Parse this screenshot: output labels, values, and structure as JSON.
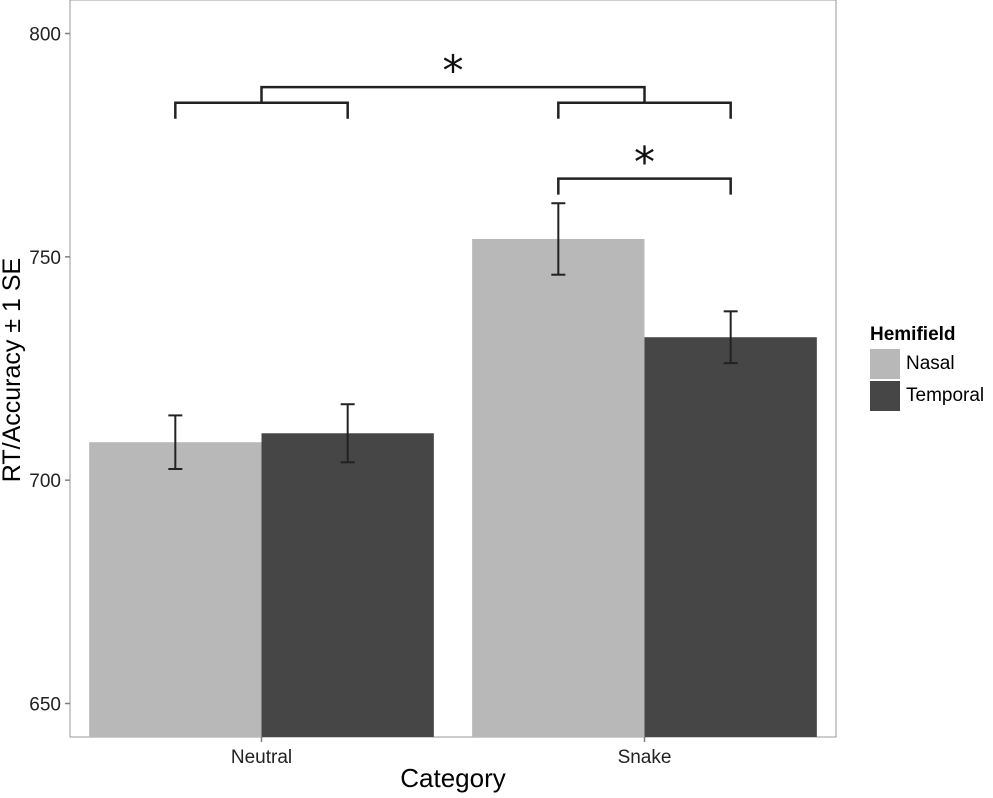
{
  "chart_data": {
    "type": "bar",
    "categories": [
      "Neutral",
      "Snake"
    ],
    "series": [
      {
        "name": "Nasal",
        "color": "#b8b8b8",
        "values": [
          708.5,
          754
        ],
        "se": [
          6,
          8
        ]
      },
      {
        "name": "Temporal",
        "color": "#464646",
        "values": [
          710.5,
          732
        ],
        "se": [
          6.5,
          5.8
        ]
      }
    ],
    "title": "",
    "xlabel": "Category",
    "ylabel": "RT/Accuracy ± 1 SE",
    "ylim": [
      642.5,
      807.5
    ],
    "yticks": [
      "650",
      "700",
      "750",
      "800"
    ],
    "ytick_values": [
      650,
      700,
      750,
      800
    ],
    "legend": {
      "title": "Hemifield",
      "position": "right"
    },
    "annotations": [
      {
        "text": "*",
        "between": "Neutral vs Snake"
      },
      {
        "text": "*",
        "between": "Snake: Nasal vs Temporal"
      }
    ],
    "grid": false
  }
}
